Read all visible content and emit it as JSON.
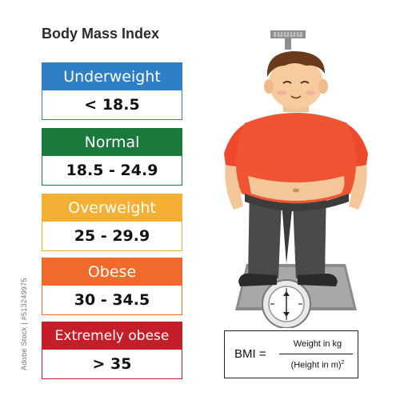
{
  "title": "Body Mass Index",
  "categories": [
    {
      "label": "Underweight",
      "range": "< 18.5",
      "color": "#2f7fc6"
    },
    {
      "label": "Normal",
      "range": "18.5 - 24.9",
      "color": "#1a7a3c"
    },
    {
      "label": "Overweight",
      "range": "25 - 29.9",
      "color": "#f4b035"
    },
    {
      "label": "Obese",
      "range": "30 - 34.5",
      "color": "#ef6a2b"
    },
    {
      "label": "Extremely obese",
      "range": "> 35",
      "color": "#c41e2a"
    }
  ],
  "formula": {
    "lhs": "BMI =",
    "numerator": "Weight in kg",
    "denominator": "(Height in m)",
    "exponent": "2"
  },
  "side_label": "Adobe Stock | #513249975"
}
